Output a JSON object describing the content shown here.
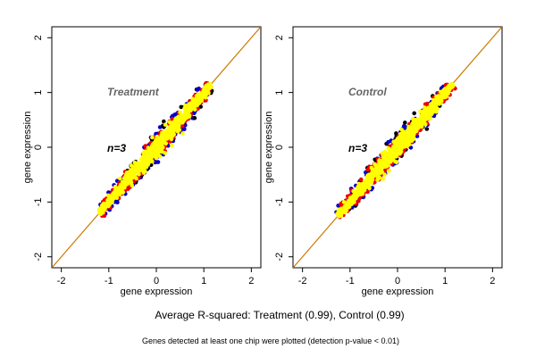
{
  "chart_data": [
    {
      "type": "scatter",
      "title": "Treatment",
      "annotation": "n=3",
      "xlabel": "gene expression",
      "ylabel": "gene expression",
      "xlim": [
        -2.2,
        2.2
      ],
      "ylim": [
        -2.2,
        2.2
      ],
      "xticks": [
        "-2",
        "-1",
        "0",
        "1",
        "2"
      ],
      "yticks": [
        "-2",
        "-1",
        "0",
        "1",
        "2"
      ],
      "point_range": [
        -1.2,
        1.15
      ],
      "reference_line": {
        "slope": 1,
        "intercept": 0,
        "color": "#cc7a00"
      },
      "series_colors": [
        "#0000cc",
        "#000000",
        "#ee0000",
        "#ffff00"
      ]
    },
    {
      "type": "scatter",
      "title": "Control",
      "annotation": "n=3",
      "xlabel": "gene expression",
      "ylabel": "gene expression",
      "xlim": [
        -2.2,
        2.2
      ],
      "ylim": [
        -2.2,
        2.2
      ],
      "xticks": [
        "-2",
        "-1",
        "0",
        "1",
        "2"
      ],
      "yticks": [
        "-2",
        "-1",
        "0",
        "1",
        "2"
      ],
      "point_range": [
        -1.25,
        1.15
      ],
      "reference_line": {
        "slope": 1,
        "intercept": 0,
        "color": "#cc7a00"
      },
      "series_colors": [
        "#0000cc",
        "#000000",
        "#ee0000",
        "#ffff00"
      ]
    }
  ],
  "caption": "Average R-squared: Treatment (0.99), Control (0.99)",
  "footnote": "Genes detected at least one chip were plotted (detection p-value < 0.01)"
}
